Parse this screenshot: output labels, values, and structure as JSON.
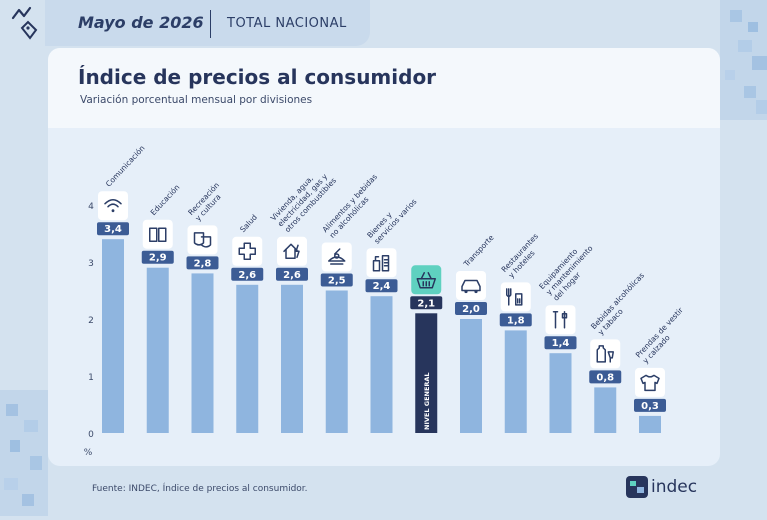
{
  "header": {
    "date": "Mayo de 2026",
    "scope": "TOTAL NACIONAL"
  },
  "title": "Índice de precios al consumidor",
  "subtitle": "Variación porcentual mensual por divisiones",
  "footer": "Fuente: INDEC, Índice de precios al consumidor.",
  "brand": "indec",
  "colors": {
    "bar": "#8fb5df",
    "highlight": "#27355c",
    "label_bg": "#3c5c95",
    "highlight_icon": "#5fd1c0"
  },
  "chart_data": {
    "type": "bar",
    "ylabel": "%",
    "ylim": [
      0,
      4
    ],
    "yticks": [
      "0",
      "1",
      "2",
      "3",
      "4"
    ],
    "categories": [
      {
        "name": "Comunicación",
        "lines": [
          "Comunicación"
        ],
        "value": 3.4,
        "label": "3,4",
        "icon": "wifi-icon"
      },
      {
        "name": "Educación",
        "lines": [
          "Educación"
        ],
        "value": 2.9,
        "label": "2,9",
        "icon": "book-icon"
      },
      {
        "name": "Recreación y cultura",
        "lines": [
          "Recreación",
          "y cultura"
        ],
        "value": 2.8,
        "label": "2,8",
        "icon": "theater-icon"
      },
      {
        "name": "Salud",
        "lines": [
          "Salud"
        ],
        "value": 2.6,
        "label": "2,6",
        "icon": "cross-icon"
      },
      {
        "name": "Vivienda, agua, electricidad, gas y otros combustibles",
        "lines": [
          "Vivienda, agua,",
          "electricidad, gas y",
          "otros combustibles"
        ],
        "value": 2.6,
        "label": "2,6",
        "icon": "house-icon"
      },
      {
        "name": "Alimentos y bebidas no alcohólicas",
        "lines": [
          "Alimentos y bebidas",
          "no alcohólicas"
        ],
        "value": 2.5,
        "label": "2,5",
        "icon": "food-icon"
      },
      {
        "name": "Bienes y servicios varios",
        "lines": [
          "Bienes y",
          "servicios varios"
        ],
        "value": 2.4,
        "label": "2,4",
        "icon": "toiletries-icon"
      },
      {
        "name": "NIVEL GENERAL",
        "lines": [],
        "value": 2.1,
        "label": "2,1",
        "icon": "basket-icon",
        "highlight": true
      },
      {
        "name": "Transporte",
        "lines": [
          "Transporte"
        ],
        "value": 2.0,
        "label": "2,0",
        "icon": "car-icon"
      },
      {
        "name": "Restaurantes y hoteles",
        "lines": [
          "Restaurantes",
          "y hoteles"
        ],
        "value": 1.8,
        "label": "1,8",
        "icon": "restaurant-icon"
      },
      {
        "name": "Equipamiento y mantenimiento del hogar",
        "lines": [
          "Equipamiento",
          "y mantenimiento",
          "del hogar"
        ],
        "value": 1.4,
        "label": "1,4",
        "icon": "tools-icon"
      },
      {
        "name": "Bebidas alcohólicas y tabaco",
        "lines": [
          "Bebidas alcohólicas",
          "y tabaco"
        ],
        "value": 0.8,
        "label": "0,8",
        "icon": "bottle-icon"
      },
      {
        "name": "Prendas de vestir y calzado",
        "lines": [
          "Prendas de vestir",
          "y calzado"
        ],
        "value": 0.3,
        "label": "0,3",
        "icon": "shirt-icon"
      }
    ]
  }
}
